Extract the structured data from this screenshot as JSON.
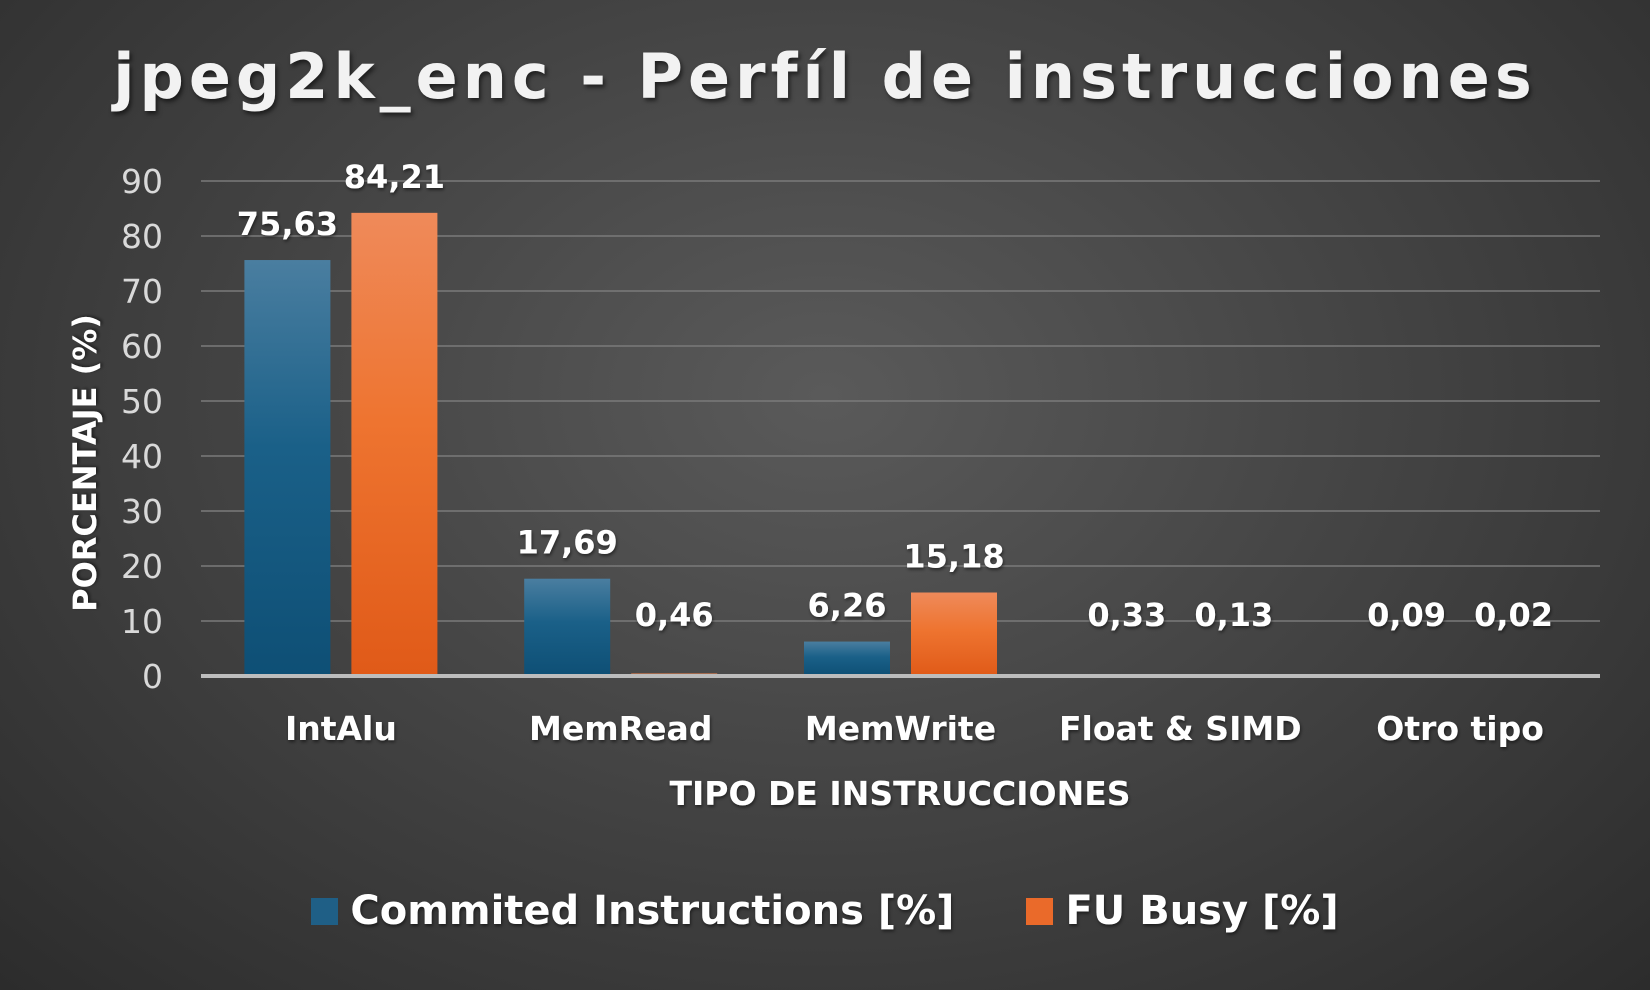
{
  "chart_data": {
    "type": "bar",
    "title": "jpeg2k_enc - Perfíl de instrucciones",
    "xlabel": "TIPO DE INSTRUCCIONES",
    "ylabel": "PORCENTAJE (%)",
    "categories": [
      "IntAlu",
      "MemRead",
      "MemWrite",
      "Float & SIMD",
      "Otro tipo"
    ],
    "series": [
      {
        "name": "Commited Instructions [%]",
        "color": "#1f5f86",
        "values": [
          75.63,
          17.69,
          6.26,
          0.33,
          0.09
        ],
        "labels": [
          "75,63",
          "17,69",
          "6,26",
          "0,33",
          "0,09"
        ]
      },
      {
        "name": "FU Busy [%]",
        "color": "#ea6a2a",
        "values": [
          84.21,
          0.46,
          15.18,
          0.13,
          0.02
        ],
        "labels": [
          "84,21",
          "0,46",
          "15,18",
          "0,13",
          "0,02"
        ]
      }
    ],
    "ylim": [
      0,
      90
    ],
    "yticks": [
      "0",
      "10",
      "20",
      "30",
      "40",
      "50",
      "60",
      "70",
      "80",
      "90"
    ],
    "grid": true,
    "legend_position": "bottom"
  }
}
